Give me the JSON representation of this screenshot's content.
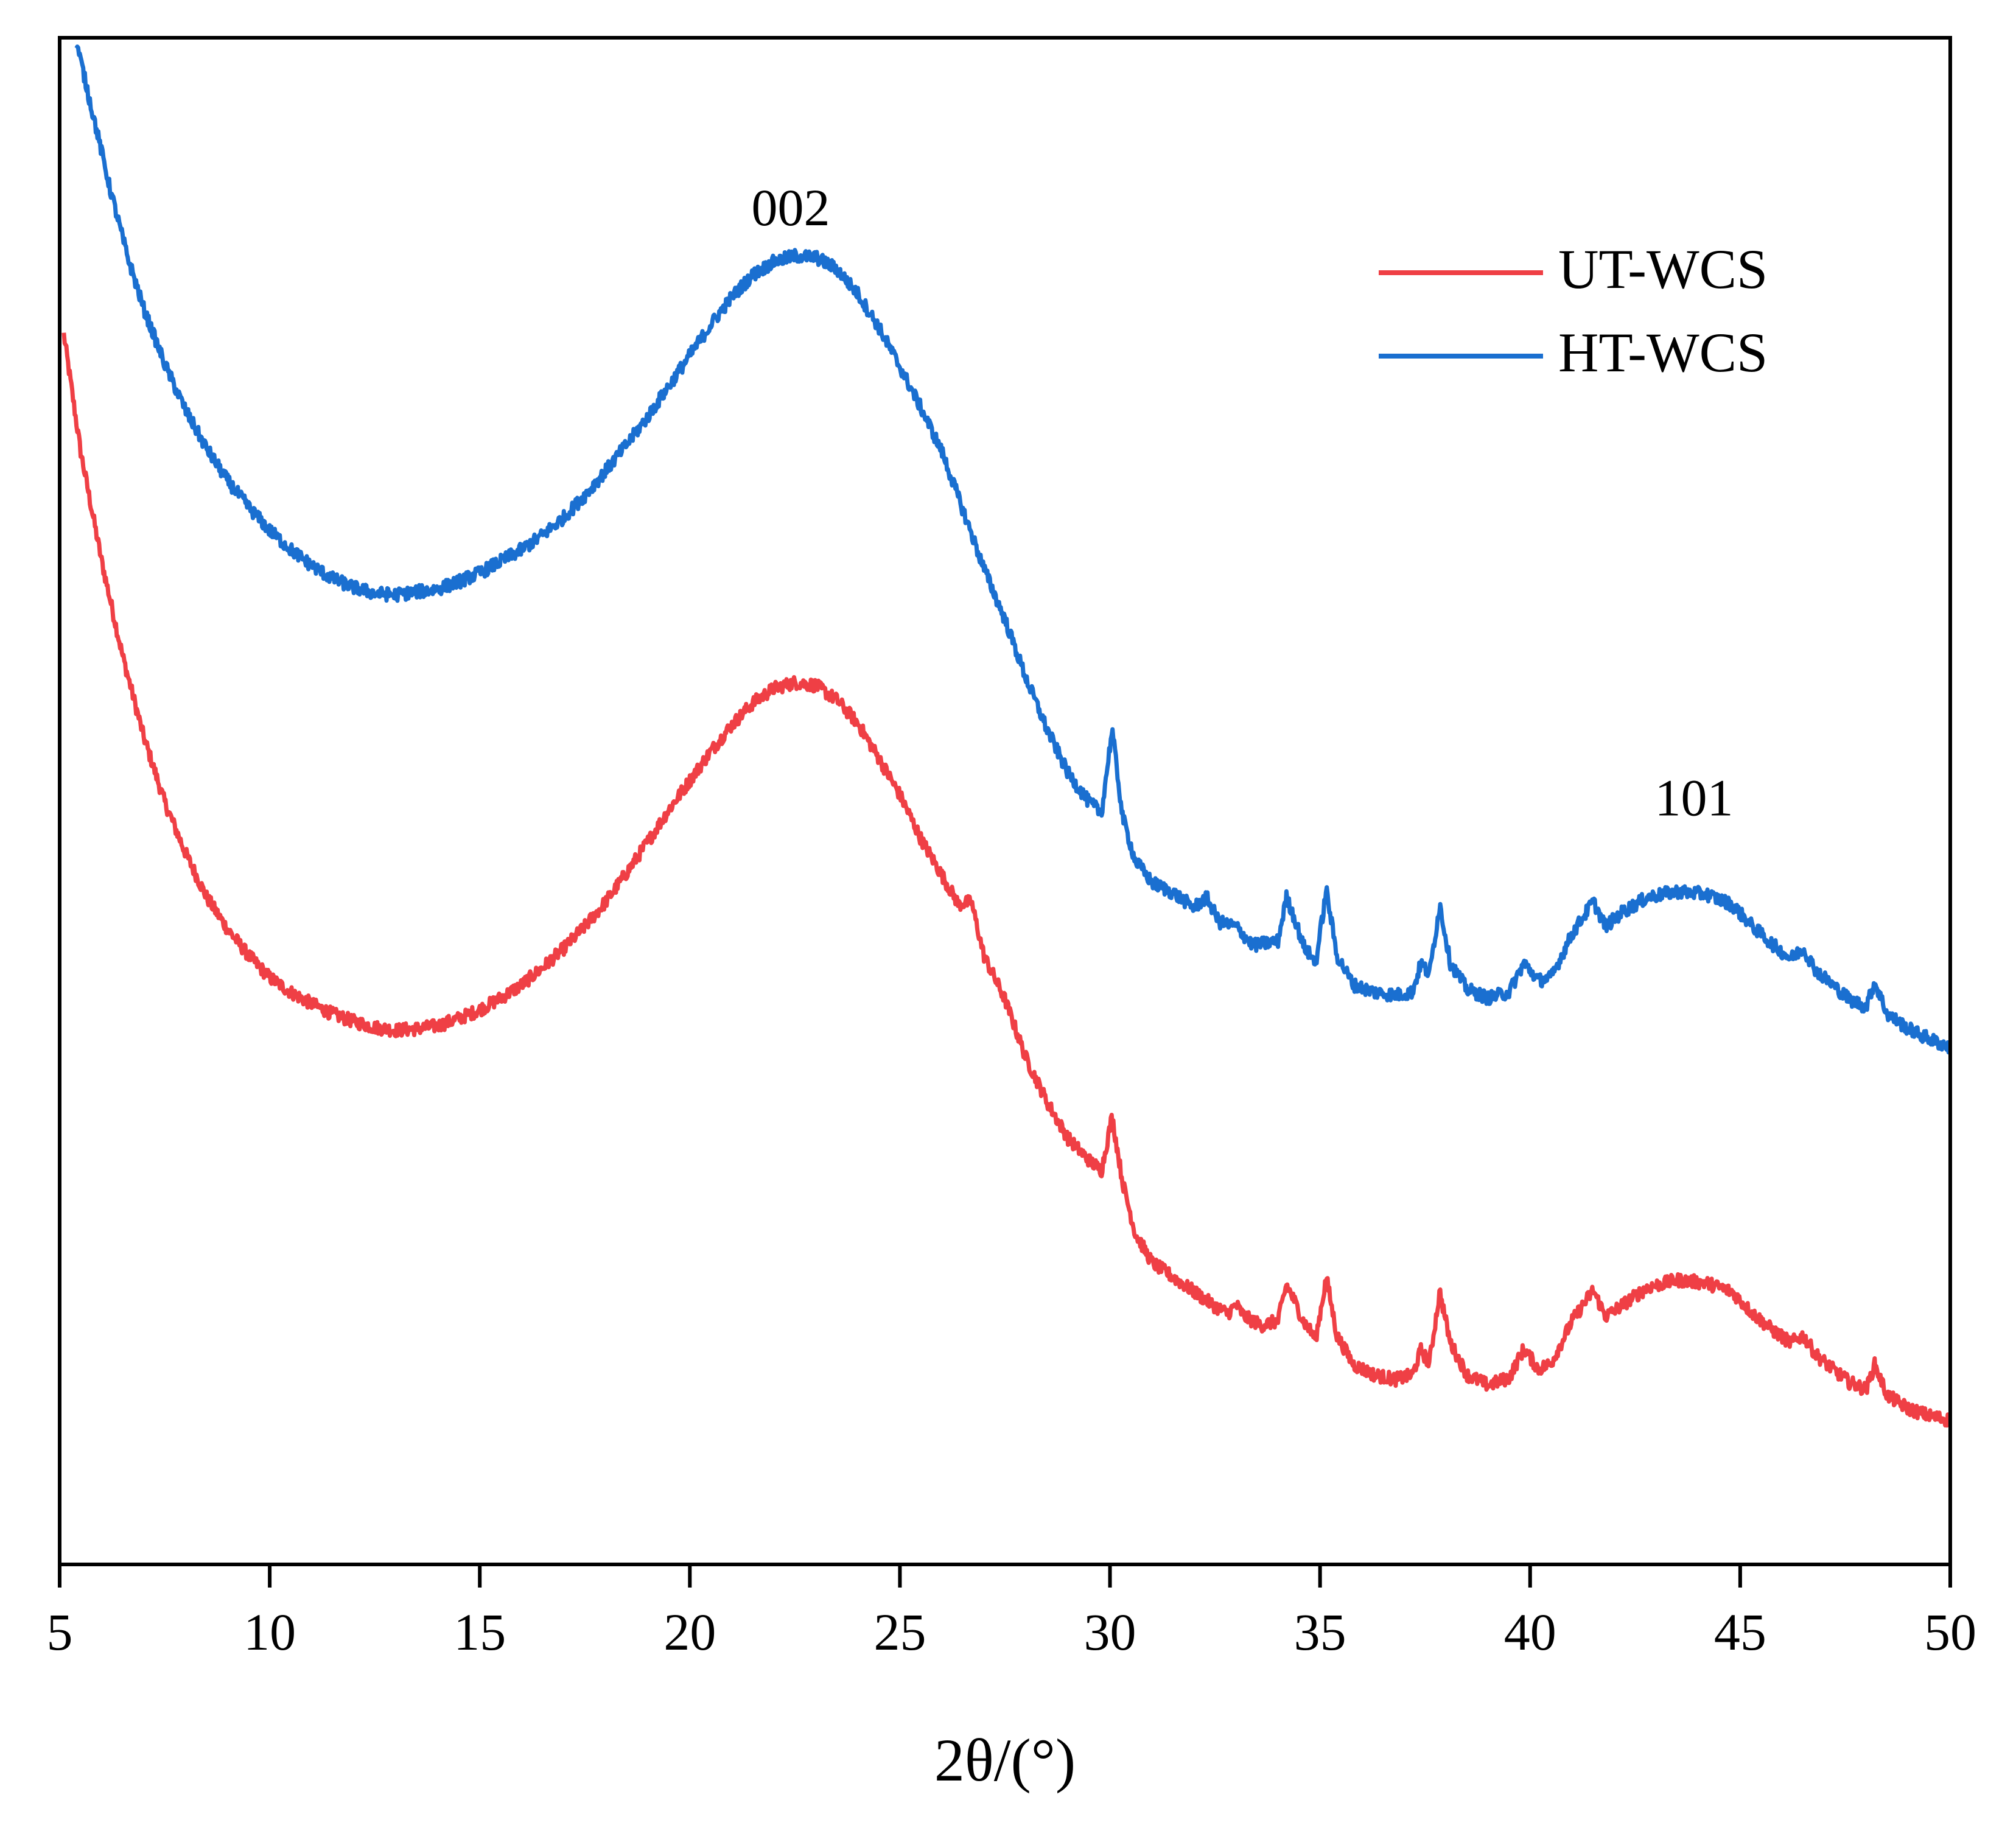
{
  "chart_data": {
    "type": "line",
    "title": "",
    "xlabel": "2θ/(°)",
    "ylabel": "",
    "xlim": [
      5,
      50
    ],
    "ylim": [
      0,
      100
    ],
    "xticks": [
      5,
      10,
      15,
      20,
      25,
      30,
      35,
      40,
      45,
      50
    ],
    "xtick_labels": [
      "5",
      "10",
      "15",
      "20",
      "25",
      "30",
      "35",
      "40",
      "45",
      "50"
    ],
    "yticks_shown": false,
    "legend": {
      "position": "top-right"
    },
    "annotations": [
      {
        "text": "002",
        "x": 22.4,
        "y": 87.5
      },
      {
        "text": "101",
        "x": 43.9,
        "y": 47.1
      }
    ],
    "series": [
      {
        "name": "UT-WCS",
        "color": "#ef3f45",
        "points": [
          [
            5.1,
            80.0
          ],
          [
            5.5,
            72.0
          ],
          [
            6.0,
            64.5
          ],
          [
            6.5,
            58.0
          ],
          [
            7.0,
            52.5
          ],
          [
            7.5,
            48.0
          ],
          [
            8.0,
            44.5
          ],
          [
            8.5,
            41.5
          ],
          [
            9.0,
            39.3
          ],
          [
            9.5,
            37.5
          ],
          [
            10.0,
            36.0
          ],
          [
            10.5,
            35.0
          ],
          [
            11.0,
            34.2
          ],
          [
            11.5,
            33.5
          ],
          [
            12.0,
            33.0
          ],
          [
            12.5,
            32.6
          ],
          [
            13.0,
            32.4
          ],
          [
            13.5,
            32.5
          ],
          [
            14.0,
            32.7
          ],
          [
            14.5,
            33.2
          ],
          [
            15.0,
            33.8
          ],
          [
            15.5,
            34.6
          ],
          [
            16.0,
            35.5
          ],
          [
            16.5,
            36.7
          ],
          [
            17.0,
            38.0
          ],
          [
            17.5,
            39.5
          ],
          [
            18.0,
            41.2
          ],
          [
            18.5,
            43.2
          ],
          [
            19.0,
            45.3
          ],
          [
            19.5,
            47.5
          ],
          [
            20.0,
            49.5
          ],
          [
            20.5,
            51.5
          ],
          [
            21.0,
            53.3
          ],
          [
            21.5,
            54.8
          ],
          [
            22.0,
            55.8
          ],
          [
            22.5,
            56.2
          ],
          [
            23.0,
            56.0
          ],
          [
            23.5,
            55.0
          ],
          [
            24.0,
            53.4
          ],
          [
            24.5,
            51.0
          ],
          [
            25.0,
            48.5
          ],
          [
            25.5,
            45.5
          ],
          [
            26.0,
            43.0
          ],
          [
            26.4,
            41.0
          ],
          [
            26.7,
            41.2
          ],
          [
            27.0,
            37.5
          ],
          [
            27.5,
            34.5
          ],
          [
            28.0,
            30.5
          ],
          [
            28.5,
            27.5
          ],
          [
            29.0,
            25.0
          ],
          [
            29.5,
            23.5
          ],
          [
            29.8,
            22.8
          ],
          [
            30.05,
            26.5
          ],
          [
            30.3,
            22.0
          ],
          [
            30.6,
            18.5
          ],
          [
            31.0,
            16.5
          ],
          [
            31.5,
            15.5
          ],
          [
            32.0,
            14.5
          ],
          [
            32.5,
            13.5
          ],
          [
            32.8,
            13.0
          ],
          [
            33.0,
            13.6
          ],
          [
            33.2,
            12.8
          ],
          [
            33.6,
            12.2
          ],
          [
            34.0,
            12.5
          ],
          [
            34.2,
            15.0
          ],
          [
            34.4,
            13.8
          ],
          [
            34.6,
            12.5
          ],
          [
            34.9,
            11.3
          ],
          [
            35.15,
            15.5
          ],
          [
            35.4,
            11.5
          ],
          [
            35.8,
            9.5
          ],
          [
            36.3,
            8.8
          ],
          [
            36.8,
            8.5
          ],
          [
            37.2,
            8.8
          ],
          [
            37.4,
            10.5
          ],
          [
            37.6,
            9.6
          ],
          [
            37.85,
            14.5
          ],
          [
            38.1,
            11.0
          ],
          [
            38.5,
            8.8
          ],
          [
            39.0,
            8.1
          ],
          [
            39.5,
            8.6
          ],
          [
            39.85,
            10.6
          ],
          [
            40.2,
            9.2
          ],
          [
            40.5,
            9.6
          ],
          [
            41.0,
            12.5
          ],
          [
            41.5,
            14.6
          ],
          [
            41.8,
            12.8
          ],
          [
            42.2,
            13.6
          ],
          [
            42.8,
            14.8
          ],
          [
            43.5,
            15.3
          ],
          [
            44.2,
            15.1
          ],
          [
            44.8,
            14.5
          ],
          [
            45.3,
            13.0
          ],
          [
            45.8,
            11.8
          ],
          [
            46.2,
            11.0
          ],
          [
            46.5,
            11.5
          ],
          [
            46.8,
            10.2
          ],
          [
            47.2,
            9.2
          ],
          [
            47.6,
            8.3
          ],
          [
            48.0,
            7.8
          ],
          [
            48.2,
            9.5
          ],
          [
            48.5,
            7.4
          ],
          [
            49.0,
            6.5
          ],
          [
            49.5,
            6.0
          ],
          [
            50.0,
            5.7
          ]
        ]
      },
      {
        "name": "HT-WCS",
        "color": "#1a6fd0",
        "points": [
          [
            5.4,
            100.0
          ],
          [
            5.8,
            95.0
          ],
          [
            6.2,
            90.0
          ],
          [
            6.6,
            85.5
          ],
          [
            7.0,
            81.8
          ],
          [
            7.5,
            78.0
          ],
          [
            8.0,
            74.8
          ],
          [
            8.5,
            72.2
          ],
          [
            9.0,
            70.0
          ],
          [
            9.5,
            68.2
          ],
          [
            10.0,
            66.6
          ],
          [
            10.5,
            65.3
          ],
          [
            11.0,
            64.2
          ],
          [
            11.5,
            63.3
          ],
          [
            12.0,
            62.7
          ],
          [
            12.5,
            62.3
          ],
          [
            13.0,
            62.2
          ],
          [
            13.5,
            62.4
          ],
          [
            14.0,
            62.6
          ],
          [
            14.5,
            63.1
          ],
          [
            15.0,
            63.7
          ],
          [
            15.5,
            64.5
          ],
          [
            16.0,
            65.3
          ],
          [
            16.5,
            66.3
          ],
          [
            17.0,
            67.5
          ],
          [
            17.5,
            69.0
          ],
          [
            18.0,
            70.7
          ],
          [
            18.5,
            72.5
          ],
          [
            19.0,
            74.4
          ],
          [
            19.5,
            76.5
          ],
          [
            20.0,
            78.6
          ],
          [
            20.5,
            80.7
          ],
          [
            21.0,
            82.6
          ],
          [
            21.5,
            84.1
          ],
          [
            22.0,
            85.0
          ],
          [
            22.5,
            85.4
          ],
          [
            23.0,
            85.3
          ],
          [
            23.5,
            84.5
          ],
          [
            24.0,
            82.8
          ],
          [
            24.5,
            80.5
          ],
          [
            25.0,
            77.8
          ],
          [
            25.5,
            75.0
          ],
          [
            26.0,
            72.0
          ],
          [
            26.5,
            68.0
          ],
          [
            27.0,
            64.0
          ],
          [
            27.5,
            60.5
          ],
          [
            28.0,
            56.5
          ],
          [
            28.5,
            53.0
          ],
          [
            29.0,
            50.0
          ],
          [
            29.5,
            48.0
          ],
          [
            29.8,
            47.3
          ],
          [
            30.05,
            53.0
          ],
          [
            30.3,
            47.0
          ],
          [
            30.6,
            44.0
          ],
          [
            31.0,
            42.5
          ],
          [
            31.5,
            41.8
          ],
          [
            32.0,
            40.8
          ],
          [
            32.3,
            41.5
          ],
          [
            32.6,
            39.8
          ],
          [
            33.0,
            39.5
          ],
          [
            33.4,
            38.2
          ],
          [
            34.0,
            38.5
          ],
          [
            34.2,
            41.5
          ],
          [
            34.4,
            40.0
          ],
          [
            34.6,
            38.2
          ],
          [
            34.9,
            37.0
          ],
          [
            35.15,
            42.0
          ],
          [
            35.4,
            37.5
          ],
          [
            35.8,
            35.5
          ],
          [
            36.3,
            35.0
          ],
          [
            36.8,
            34.8
          ],
          [
            37.2,
            35.0
          ],
          [
            37.4,
            37.0
          ],
          [
            37.6,
            36.2
          ],
          [
            37.85,
            41.0
          ],
          [
            38.1,
            37.0
          ],
          [
            38.5,
            35.2
          ],
          [
            39.0,
            34.6
          ],
          [
            39.5,
            35.0
          ],
          [
            39.85,
            37.0
          ],
          [
            40.2,
            35.8
          ],
          [
            40.5,
            36.0
          ],
          [
            41.0,
            39.0
          ],
          [
            41.5,
            41.2
          ],
          [
            41.8,
            39.5
          ],
          [
            42.2,
            40.5
          ],
          [
            42.8,
            41.5
          ],
          [
            43.5,
            41.9
          ],
          [
            44.2,
            41.7
          ],
          [
            44.8,
            41.0
          ],
          [
            45.3,
            39.5
          ],
          [
            45.8,
            38.2
          ],
          [
            46.2,
            37.3
          ],
          [
            46.5,
            38.0
          ],
          [
            46.8,
            36.5
          ],
          [
            47.2,
            35.5
          ],
          [
            47.6,
            34.5
          ],
          [
            48.0,
            34.0
          ],
          [
            48.2,
            35.7
          ],
          [
            48.5,
            33.5
          ],
          [
            49.0,
            32.5
          ],
          [
            49.5,
            31.8
          ],
          [
            50.0,
            31.2
          ]
        ]
      }
    ]
  }
}
